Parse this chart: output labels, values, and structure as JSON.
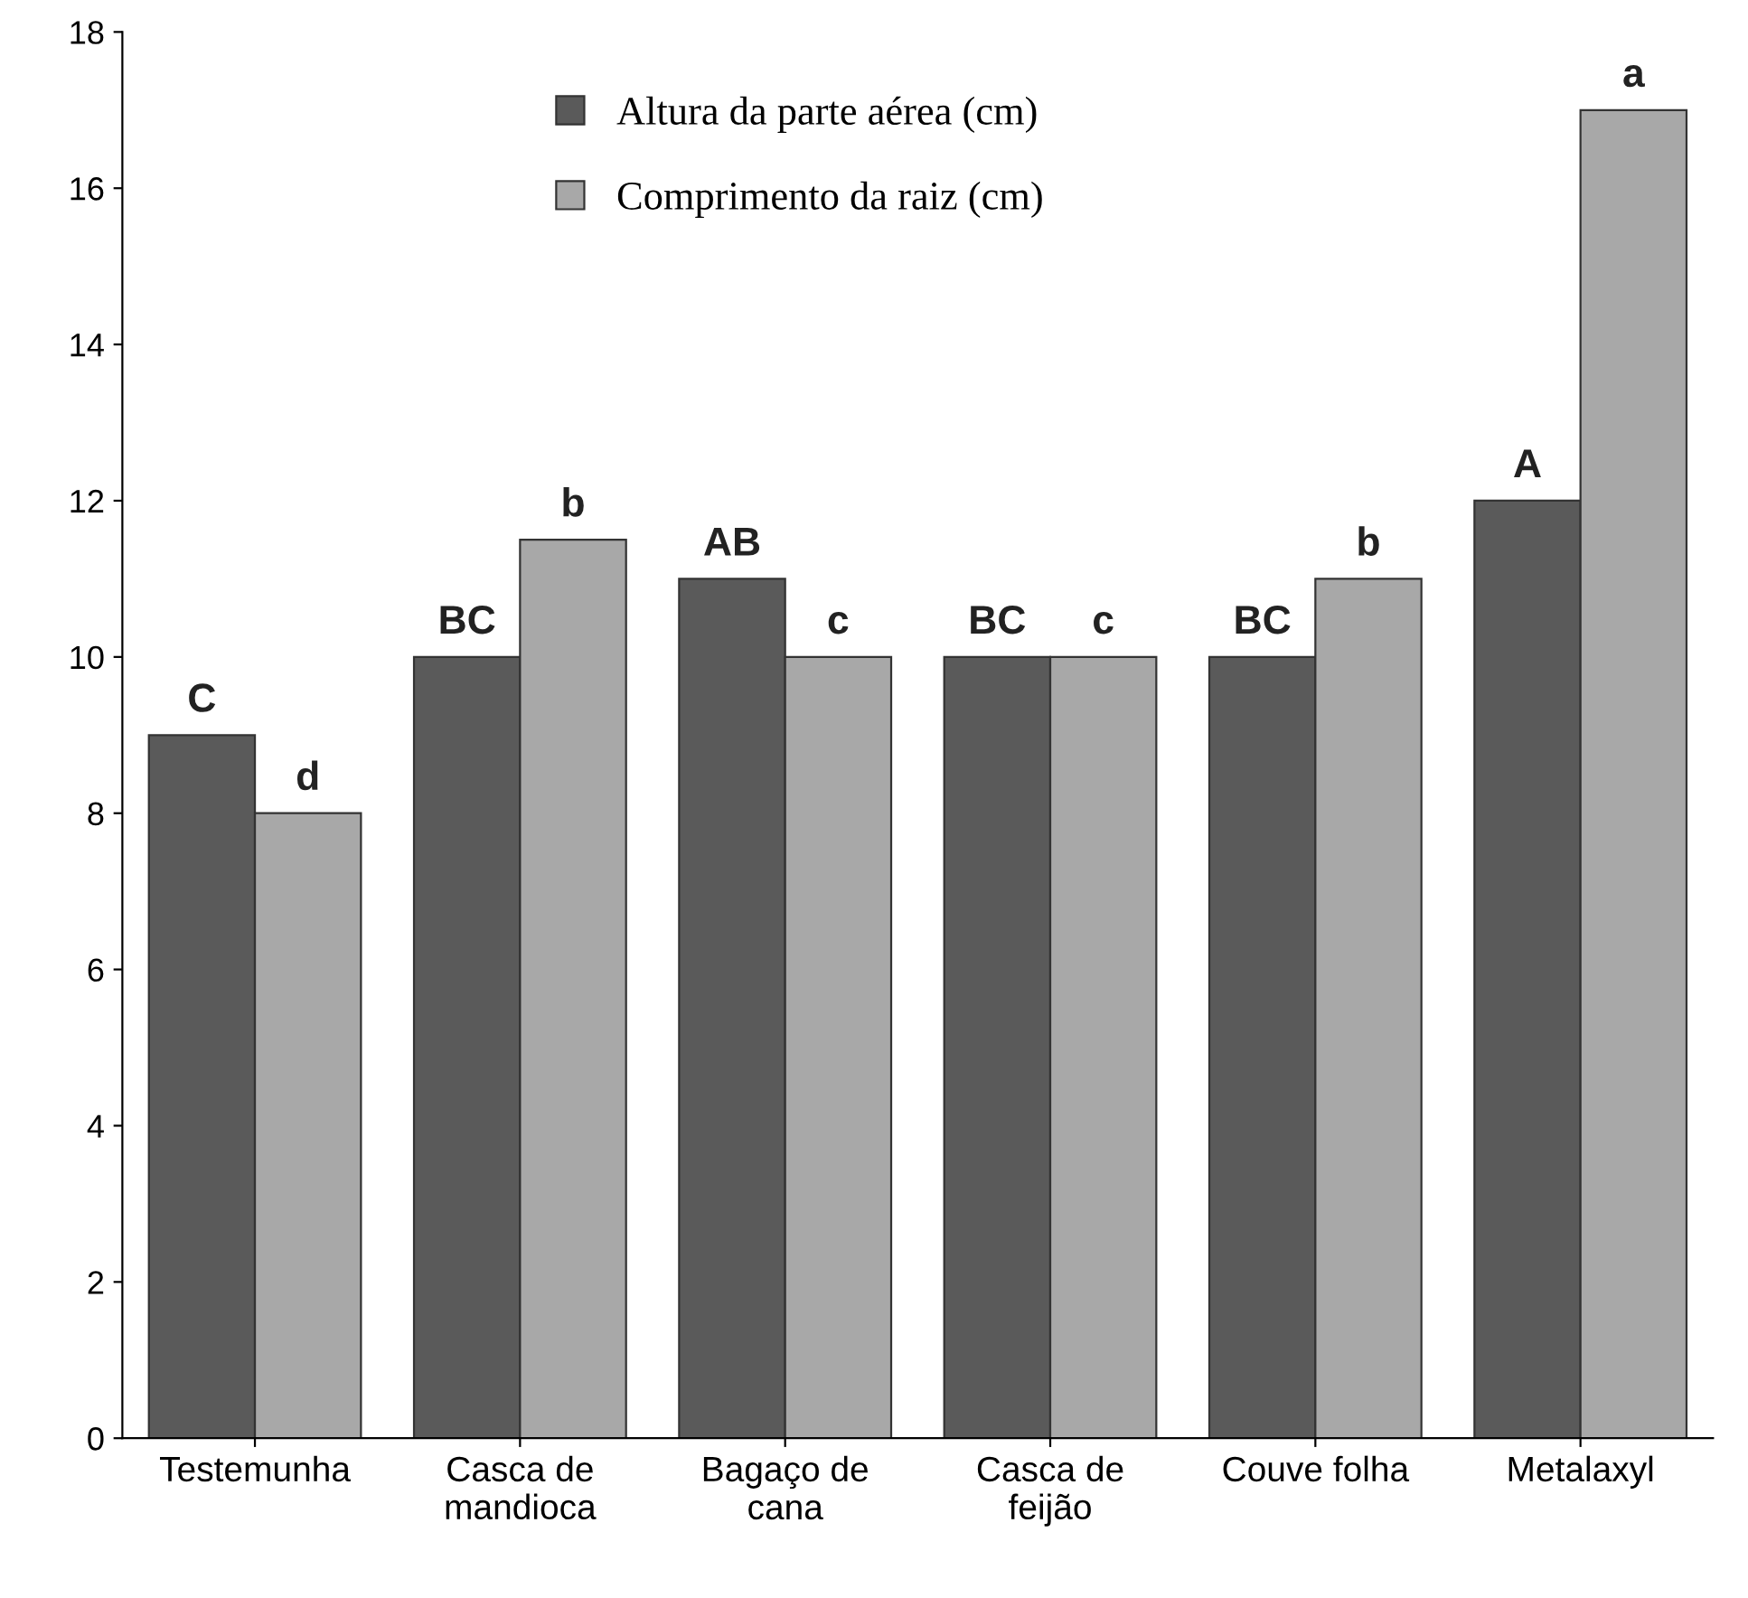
{
  "chart_data": {
    "type": "bar",
    "categories": [
      "Testemunha",
      "Casca de\nmandioca",
      "Bagaço de\ncana",
      "Casca de\nfeijão",
      "Couve folha",
      "Metalaxyl"
    ],
    "series": [
      {
        "name": "Altura da parte aérea (cm)",
        "color": "#5a5a5a",
        "values": [
          9,
          10,
          11,
          10,
          10,
          12
        ],
        "value_labels": [
          "C",
          "BC",
          "AB",
          "BC",
          "BC",
          "A"
        ]
      },
      {
        "name": "Comprimento da raiz (cm)",
        "color": "#a8a8a8",
        "values": [
          8,
          11.5,
          10,
          10,
          11,
          17
        ],
        "value_labels": [
          "d",
          "b",
          "c",
          "c",
          "b",
          "a"
        ]
      }
    ],
    "ylim": [
      0,
      18
    ],
    "yticks": [
      0,
      2,
      4,
      6,
      8,
      10,
      12,
      14,
      16,
      18
    ],
    "grid": false,
    "legend": "top"
  }
}
